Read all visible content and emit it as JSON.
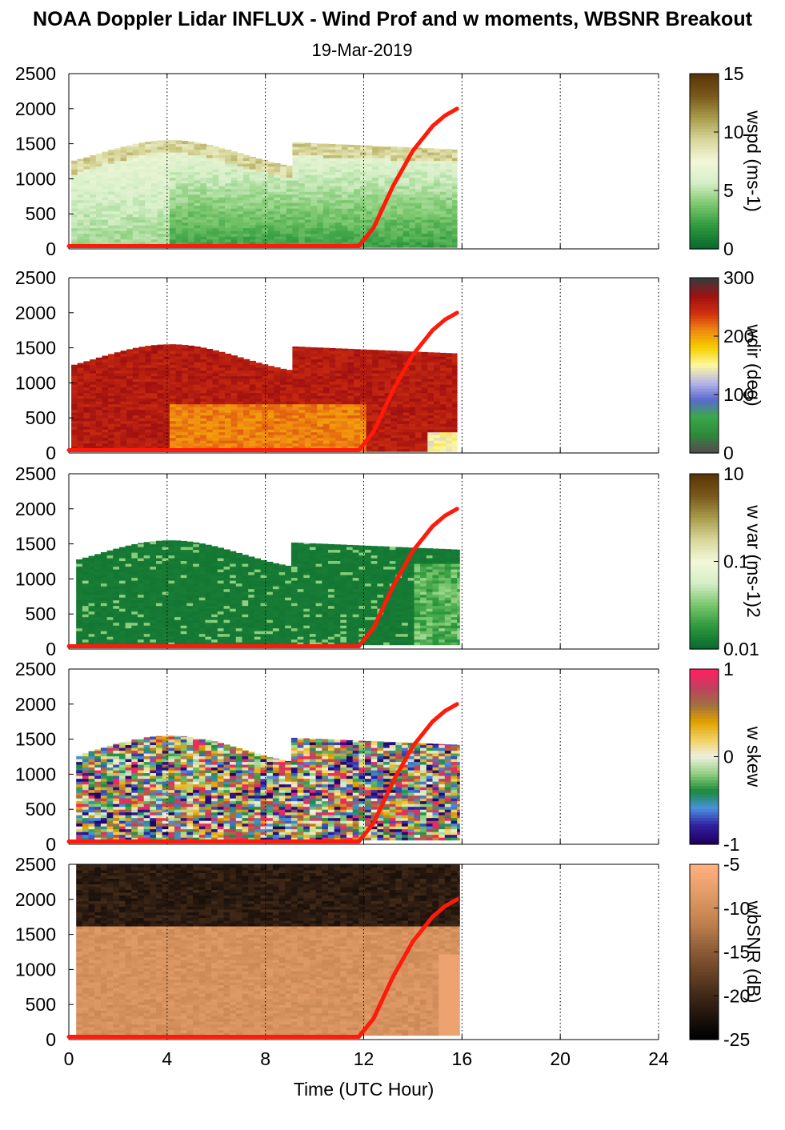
{
  "header": {
    "title": "NOAA Doppler Lidar INFLUX - Wind Prof and w moments, WBSNR Breakout",
    "subtitle": "19-Mar-2019"
  },
  "chart_data": [
    {
      "type": "heatmap",
      "panel": "wspd",
      "ylabel": "",
      "ylim": [
        0,
        2500
      ],
      "yticks": [
        "0",
        "500",
        "1000",
        "1500",
        "2000",
        "2500"
      ],
      "colorbar": {
        "label": "wspd (ms-1)",
        "ticks": [
          "15",
          "10",
          "5",
          "0"
        ],
        "range": [
          0,
          15
        ],
        "colors": [
          "#0a6b30",
          "#2f9a3d",
          "#7cc86e",
          "#d6efc8",
          "#f3f7d8",
          "#d8d69a",
          "#a89c4c",
          "#7a5a1c",
          "#5a3608"
        ]
      },
      "data_extent_hours": [
        0.1,
        15.8
      ],
      "mixing_height_curve": {
        "x": [
          0,
          11.8,
          12.4,
          13.2,
          14,
          14.8,
          15.3,
          15.8
        ],
        "y": [
          40,
          40,
          300,
          900,
          1400,
          1750,
          1900,
          2000
        ]
      }
    },
    {
      "type": "heatmap",
      "panel": "wdir",
      "ylabel": "",
      "ylim": [
        0,
        2500
      ],
      "yticks": [
        "0",
        "500",
        "1000",
        "1500",
        "2000",
        "2500"
      ],
      "colorbar": {
        "label": "wdir (deg)",
        "ticks": [
          "300",
          "200",
          "100",
          "0"
        ],
        "range": [
          0,
          360
        ],
        "colors": [
          "#505050",
          "#2e8b3a",
          "#3aa84a",
          "#5a6ad0",
          "#b8b8e8",
          "#fff8a0",
          "#f4d000",
          "#f08a10",
          "#d03010",
          "#a01010",
          "#3a3a3a"
        ]
      },
      "data_extent_hours": [
        0.1,
        15.8
      ],
      "mixing_height_curve": {
        "x": [
          0,
          11.8,
          12.4,
          13.2,
          14,
          14.8,
          15.3,
          15.8
        ],
        "y": [
          40,
          40,
          300,
          900,
          1400,
          1750,
          1900,
          2000
        ]
      }
    },
    {
      "type": "heatmap",
      "panel": "w var",
      "ylabel": "",
      "ylim": [
        0,
        2500
      ],
      "yticks": [
        "0",
        "500",
        "1000",
        "1500",
        "2000",
        "2500"
      ],
      "colorbar": {
        "label": "w var (ms-1)2",
        "ticks": [
          "10",
          "0.1",
          "0.01"
        ],
        "scale": "log",
        "range": [
          0.01,
          10
        ],
        "colors": [
          "#0a6b30",
          "#2f9a3d",
          "#7cc86e",
          "#d6efc8",
          "#f3f7d8",
          "#d8d69a",
          "#a89c4c",
          "#7a5a1c",
          "#5a3608"
        ]
      },
      "data_extent_hours": [
        0.3,
        15.9
      ],
      "mixing_height_curve": {
        "x": [
          0,
          11.8,
          12.4,
          13.2,
          14,
          14.8,
          15.3,
          15.8
        ],
        "y": [
          40,
          40,
          300,
          900,
          1400,
          1750,
          1900,
          2000
        ]
      }
    },
    {
      "type": "heatmap",
      "panel": "w skew",
      "ylabel": "",
      "ylim": [
        0,
        2500
      ],
      "yticks": [
        "0",
        "500",
        "1000",
        "1500",
        "2000",
        "2500"
      ],
      "colorbar": {
        "label": "w skew",
        "ticks": [
          "1",
          "0",
          "-1"
        ],
        "range": [
          -1,
          1
        ],
        "colors": [
          "#200060",
          "#3020a0",
          "#4a90e0",
          "#1a8a3a",
          "#90d080",
          "#f0f0e0",
          "#f0d060",
          "#e0a000",
          "#a07040",
          "#c04060",
          "#ff2060"
        ]
      },
      "data_extent_hours": [
        0.3,
        15.9
      ],
      "mixing_height_curve": {
        "x": [
          0,
          11.8,
          12.4,
          13.2,
          14,
          14.8,
          15.3,
          15.8
        ],
        "y": [
          40,
          40,
          300,
          900,
          1400,
          1750,
          1900,
          2000
        ]
      }
    },
    {
      "type": "heatmap",
      "panel": "wbSNR",
      "ylabel": "",
      "xlabel": "Time (UTC Hour)",
      "xlim": [
        0,
        24
      ],
      "xticks": [
        "0",
        "4",
        "8",
        "12",
        "16",
        "20",
        "24"
      ],
      "ylim": [
        0,
        2500
      ],
      "yticks": [
        "0",
        "500",
        "1000",
        "1500",
        "2000",
        "2500"
      ],
      "colorbar": {
        "label": "wbSNR (dB)",
        "ticks": [
          "-5",
          "-10",
          "-15",
          "-20",
          "-25"
        ],
        "range": [
          -25,
          -5
        ],
        "colors": [
          "#000000",
          "#2a1a10",
          "#5a3a20",
          "#8a5a36",
          "#c0804e",
          "#e09a66",
          "#ffb080"
        ]
      },
      "data_extent_hours": [
        0.3,
        15.9
      ],
      "mixing_height_curve": {
        "x": [
          0,
          11.8,
          12.4,
          13.2,
          14,
          14.8,
          15.3,
          15.8
        ],
        "y": [
          40,
          40,
          300,
          900,
          1400,
          1750,
          1900,
          2000
        ]
      }
    }
  ]
}
